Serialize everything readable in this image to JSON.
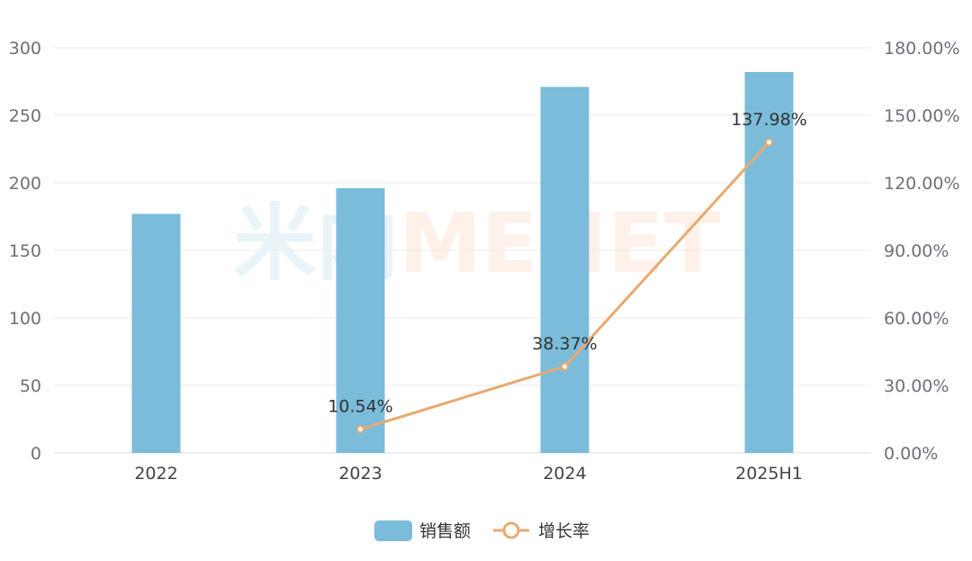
{
  "chart_data": {
    "type": "bar",
    "categories": [
      "2022",
      "2023",
      "2024",
      "2025H1"
    ],
    "series": [
      {
        "name": "销售额",
        "type": "bar",
        "axis": "left",
        "color": "#7bbcda",
        "values": [
          177,
          196,
          271,
          282
        ]
      },
      {
        "name": "增长率",
        "type": "line",
        "axis": "right",
        "color": "#eaa96f",
        "values": [
          null,
          10.54,
          38.37,
          137.98
        ],
        "labels": [
          "",
          "10.54%",
          "38.37%",
          "137.98%"
        ]
      }
    ],
    "y_left": {
      "min": 0,
      "max": 300,
      "ticks": [
        "0",
        "50",
        "100",
        "150",
        "200",
        "250",
        "300"
      ]
    },
    "y_right": {
      "min": 0,
      "max": 180,
      "ticks": [
        "0.00%",
        "30.00%",
        "60.00%",
        "90.00%",
        "120.00%",
        "150.00%",
        "180.00%"
      ]
    },
    "grid": true,
    "legend_position": "bottom-center",
    "watermark": "米内MENET"
  }
}
